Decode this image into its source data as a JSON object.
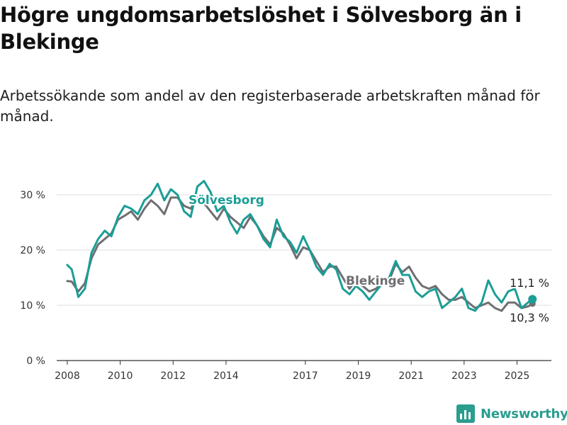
{
  "header": {
    "title": "Högre ungdomsarbetslöshet i Sölvesborg än i Blekinge",
    "subtitle": "Arbetssökande som andel av den registerbaserade arbetskraften månad för månad."
  },
  "brand": {
    "name": "Newsworthy",
    "icon": "newsworthy-logo-icon",
    "color": "#2a9d8f"
  },
  "chart_data": {
    "type": "line",
    "x_ticks": [
      "2008",
      "2010",
      "2012",
      "2014",
      "2017",
      "2019",
      "2021",
      "2023",
      "2025"
    ],
    "y_ticks": [
      {
        "value": 0,
        "label": "0 %"
      },
      {
        "value": 10,
        "label": "10 %"
      },
      {
        "value": 20,
        "label": "20 %"
      },
      {
        "value": 30,
        "label": "30 %"
      }
    ],
    "ylim": [
      0,
      35
    ],
    "grid": true,
    "series": [
      {
        "name": "Blekinge",
        "color": "#6e6e73",
        "end_label": "10,3 %",
        "points": [
          [
            "2008-01",
            14.4
          ],
          [
            "2008-03",
            14.3
          ],
          [
            "2008-06",
            12.5
          ],
          [
            "2008-09",
            14.0
          ],
          [
            "2008-12",
            18.5
          ],
          [
            "2009-03",
            21.0
          ],
          [
            "2009-06",
            22.0
          ],
          [
            "2009-09",
            23.0
          ],
          [
            "2009-12",
            25.5
          ],
          [
            "2010-03",
            26.2
          ],
          [
            "2010-06",
            27.0
          ],
          [
            "2010-09",
            25.5
          ],
          [
            "2010-12",
            27.5
          ],
          [
            "2011-03",
            29.0
          ],
          [
            "2011-06",
            28.0
          ],
          [
            "2011-09",
            26.5
          ],
          [
            "2011-12",
            29.5
          ],
          [
            "2012-03",
            29.5
          ],
          [
            "2012-06",
            28.0
          ],
          [
            "2012-09",
            27.5
          ],
          [
            "2012-12",
            29.5
          ],
          [
            "2013-03",
            28.5
          ],
          [
            "2013-06",
            27.0
          ],
          [
            "2013-09",
            25.5
          ],
          [
            "2013-12",
            27.5
          ],
          [
            "2014-03",
            26.0
          ],
          [
            "2014-06",
            25.0
          ],
          [
            "2014-09",
            24.0
          ],
          [
            "2014-12",
            26.0
          ],
          [
            "2015-03",
            24.5
          ],
          [
            "2015-06",
            22.5
          ],
          [
            "2015-09",
            21.0
          ],
          [
            "2015-12",
            24.0
          ],
          [
            "2016-03",
            23.0
          ],
          [
            "2016-06",
            21.0
          ],
          [
            "2016-09",
            18.5
          ],
          [
            "2016-12",
            20.5
          ],
          [
            "2017-03",
            20.0
          ],
          [
            "2017-06",
            18.0
          ],
          [
            "2017-09",
            16.0
          ],
          [
            "2017-12",
            17.0
          ],
          [
            "2018-03",
            17.0
          ],
          [
            "2018-06",
            15.0
          ],
          [
            "2018-09",
            13.0
          ],
          [
            "2018-12",
            14.5
          ],
          [
            "2019-03",
            13.5
          ],
          [
            "2019-06",
            12.5
          ],
          [
            "2019-09",
            13.0
          ],
          [
            "2019-12",
            14.0
          ],
          [
            "2020-03",
            14.5
          ],
          [
            "2020-06",
            17.5
          ],
          [
            "2020-09",
            16.0
          ],
          [
            "2020-12",
            17.0
          ],
          [
            "2021-03",
            15.0
          ],
          [
            "2021-06",
            13.5
          ],
          [
            "2021-09",
            13.0
          ],
          [
            "2021-12",
            13.5
          ],
          [
            "2022-03",
            12.0
          ],
          [
            "2022-06",
            11.0
          ],
          [
            "2022-09",
            11.0
          ],
          [
            "2022-12",
            11.5
          ],
          [
            "2023-03",
            10.5
          ],
          [
            "2023-06",
            9.5
          ],
          [
            "2023-09",
            10.0
          ],
          [
            "2023-12",
            10.5
          ],
          [
            "2024-03",
            9.5
          ],
          [
            "2024-06",
            9.0
          ],
          [
            "2024-09",
            10.5
          ],
          [
            "2024-12",
            10.5
          ],
          [
            "2025-03",
            9.5
          ],
          [
            "2025-06",
            9.8
          ],
          [
            "2025-08",
            10.3
          ]
        ]
      },
      {
        "name": "Sölvesborg",
        "color": "#1a9e96",
        "end_label": "11,1 %",
        "points": [
          [
            "2008-01",
            17.3
          ],
          [
            "2008-03",
            16.5
          ],
          [
            "2008-06",
            11.5
          ],
          [
            "2008-09",
            13.0
          ],
          [
            "2008-12",
            19.5
          ],
          [
            "2009-03",
            22.0
          ],
          [
            "2009-06",
            23.5
          ],
          [
            "2009-09",
            22.5
          ],
          [
            "2009-12",
            26.0
          ],
          [
            "2010-03",
            28.0
          ],
          [
            "2010-06",
            27.5
          ],
          [
            "2010-09",
            26.5
          ],
          [
            "2010-12",
            29.0
          ],
          [
            "2011-03",
            30.0
          ],
          [
            "2011-06",
            32.0
          ],
          [
            "2011-09",
            29.0
          ],
          [
            "2011-12",
            31.0
          ],
          [
            "2012-03",
            30.0
          ],
          [
            "2012-06",
            27.0
          ],
          [
            "2012-09",
            26.0
          ],
          [
            "2012-12",
            31.5
          ],
          [
            "2013-03",
            32.5
          ],
          [
            "2013-06",
            30.5
          ],
          [
            "2013-09",
            27.0
          ],
          [
            "2013-12",
            28.0
          ],
          [
            "2014-03",
            25.0
          ],
          [
            "2014-06",
            23.0
          ],
          [
            "2014-09",
            25.5
          ],
          [
            "2014-12",
            26.5
          ],
          [
            "2015-03",
            24.5
          ],
          [
            "2015-06",
            22.0
          ],
          [
            "2015-09",
            20.5
          ],
          [
            "2015-12",
            25.5
          ],
          [
            "2016-03",
            22.5
          ],
          [
            "2016-06",
            21.5
          ],
          [
            "2016-09",
            19.5
          ],
          [
            "2016-12",
            22.5
          ],
          [
            "2017-03",
            20.0
          ],
          [
            "2017-06",
            17.0
          ],
          [
            "2017-09",
            15.5
          ],
          [
            "2017-12",
            17.5
          ],
          [
            "2018-03",
            16.5
          ],
          [
            "2018-06",
            13.0
          ],
          [
            "2018-09",
            12.0
          ],
          [
            "2018-12",
            13.5
          ],
          [
            "2019-03",
            12.5
          ],
          [
            "2019-06",
            11.0
          ],
          [
            "2019-09",
            12.5
          ],
          [
            "2019-12",
            14.0
          ],
          [
            "2020-03",
            15.0
          ],
          [
            "2020-06",
            18.0
          ],
          [
            "2020-09",
            15.5
          ],
          [
            "2020-12",
            15.5
          ],
          [
            "2021-03",
            12.5
          ],
          [
            "2021-06",
            11.5
          ],
          [
            "2021-09",
            12.5
          ],
          [
            "2021-12",
            13.0
          ],
          [
            "2022-03",
            9.5
          ],
          [
            "2022-06",
            10.5
          ],
          [
            "2022-09",
            11.5
          ],
          [
            "2022-12",
            13.0
          ],
          [
            "2023-03",
            9.5
          ],
          [
            "2023-06",
            9.0
          ],
          [
            "2023-09",
            10.5
          ],
          [
            "2023-12",
            14.5
          ],
          [
            "2024-03",
            12.0
          ],
          [
            "2024-06",
            10.5
          ],
          [
            "2024-09",
            12.5
          ],
          [
            "2024-12",
            13.0
          ],
          [
            "2025-03",
            9.5
          ],
          [
            "2025-06",
            10.5
          ],
          [
            "2025-08",
            11.1
          ]
        ]
      }
    ]
  }
}
